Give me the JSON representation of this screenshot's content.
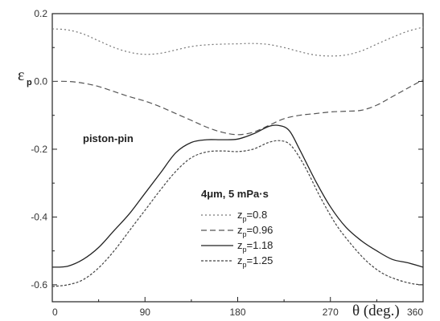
{
  "chart_data": {
    "type": "line",
    "ylabel_symbol": "ε",
    "ylabel_sub": "p",
    "xlabel": "θ (deg.)",
    "xlim": [
      0,
      360
    ],
    "ylim": [
      -0.65,
      0.2
    ],
    "xticks": [
      0,
      90,
      180,
      270,
      360
    ],
    "xtick_labels": [
      "0",
      "90",
      "180",
      "270",
      "360"
    ],
    "yticks": [
      0.2,
      0.0,
      -0.2,
      -0.4,
      -0.6
    ],
    "ytick_labels": [
      "0.2",
      "0.0",
      "-0.2",
      "-0.4",
      "-0.6"
    ],
    "annotation": "piston-pin",
    "legend_title": "4μm, 5 mPa·s",
    "legend_placement": "bottom-center",
    "grid": false,
    "series": [
      {
        "name_prefix": "z",
        "name_sub": "p",
        "name_value": "=0.8",
        "style": "dotted",
        "color": "#777777",
        "x": [
          0,
          15,
          30,
          45,
          60,
          75,
          90,
          105,
          120,
          135,
          150,
          165,
          180,
          195,
          210,
          225,
          240,
          255,
          270,
          285,
          300,
          315,
          330,
          345,
          360
        ],
        "y": [
          0.155,
          0.152,
          0.14,
          0.12,
          0.1,
          0.086,
          0.08,
          0.083,
          0.093,
          0.103,
          0.108,
          0.11,
          0.111,
          0.112,
          0.109,
          0.1,
          0.088,
          0.078,
          0.075,
          0.078,
          0.09,
          0.11,
          0.13,
          0.148,
          0.16
        ]
      },
      {
        "name_prefix": "z",
        "name_sub": "p",
        "name_value": "=0.96",
        "style": "dashed",
        "color": "#555555",
        "x": [
          0,
          15,
          30,
          45,
          60,
          75,
          90,
          105,
          120,
          135,
          150,
          165,
          180,
          195,
          210,
          225,
          240,
          255,
          270,
          285,
          300,
          315,
          330,
          345,
          360
        ],
        "y": [
          0.0,
          0.0,
          -0.005,
          -0.015,
          -0.03,
          -0.045,
          -0.058,
          -0.075,
          -0.095,
          -0.115,
          -0.135,
          -0.15,
          -0.157,
          -0.15,
          -0.13,
          -0.11,
          -0.1,
          -0.095,
          -0.09,
          -0.088,
          -0.085,
          -0.07,
          -0.045,
          -0.02,
          0.005
        ]
      },
      {
        "name_prefix": "z",
        "name_sub": "p",
        "name_value": "=1.18",
        "style": "solid",
        "color": "#222222",
        "x": [
          0,
          15,
          30,
          45,
          60,
          75,
          90,
          105,
          120,
          135,
          150,
          165,
          180,
          195,
          210,
          220,
          230,
          240,
          255,
          270,
          285,
          300,
          315,
          330,
          345,
          360
        ],
        "y": [
          -0.548,
          -0.545,
          -0.525,
          -0.49,
          -0.44,
          -0.39,
          -0.33,
          -0.27,
          -0.21,
          -0.18,
          -0.172,
          -0.172,
          -0.17,
          -0.155,
          -0.133,
          -0.13,
          -0.145,
          -0.2,
          -0.29,
          -0.37,
          -0.43,
          -0.47,
          -0.5,
          -0.525,
          -0.535,
          -0.548
        ]
      },
      {
        "name_prefix": "z",
        "name_sub": "p",
        "name_value": "=1.25",
        "style": "short-dash",
        "color": "#444444",
        "x": [
          0,
          15,
          30,
          45,
          60,
          75,
          90,
          105,
          120,
          135,
          150,
          165,
          180,
          195,
          210,
          222,
          232,
          245,
          260,
          275,
          290,
          305,
          320,
          335,
          350,
          360
        ],
        "y": [
          -0.605,
          -0.6,
          -0.585,
          -0.55,
          -0.5,
          -0.44,
          -0.38,
          -0.32,
          -0.265,
          -0.225,
          -0.208,
          -0.205,
          -0.207,
          -0.2,
          -0.18,
          -0.175,
          -0.19,
          -0.25,
          -0.34,
          -0.42,
          -0.48,
          -0.53,
          -0.565,
          -0.585,
          -0.597,
          -0.6
        ]
      }
    ]
  }
}
